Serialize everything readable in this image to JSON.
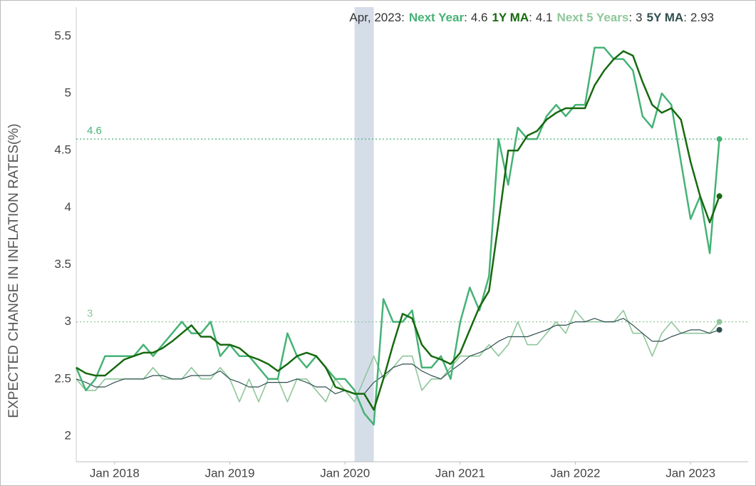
{
  "chart_data": {
    "type": "line",
    "header_date": "Apr, 2023:",
    "header_separator": ":",
    "y_label": "EXPECTED CHANGE IN INFLATION RATES(%)",
    "x": [
      "2017-09",
      "2017-10",
      "2017-11",
      "2017-12",
      "2018-01",
      "2018-02",
      "2018-03",
      "2018-04",
      "2018-05",
      "2018-06",
      "2018-07",
      "2018-08",
      "2018-09",
      "2018-10",
      "2018-11",
      "2018-12",
      "2019-01",
      "2019-02",
      "2019-03",
      "2019-04",
      "2019-05",
      "2019-06",
      "2019-07",
      "2019-08",
      "2019-09",
      "2019-10",
      "2019-11",
      "2019-12",
      "2020-01",
      "2020-02",
      "2020-03",
      "2020-04",
      "2020-05",
      "2020-06",
      "2020-07",
      "2020-08",
      "2020-09",
      "2020-10",
      "2020-11",
      "2020-12",
      "2021-01",
      "2021-02",
      "2021-03",
      "2021-04",
      "2021-05",
      "2021-06",
      "2021-07",
      "2021-08",
      "2021-09",
      "2021-10",
      "2021-11",
      "2021-12",
      "2022-01",
      "2022-02",
      "2022-03",
      "2022-04",
      "2022-05",
      "2022-06",
      "2022-07",
      "2022-08",
      "2022-09",
      "2022-10",
      "2022-11",
      "2022-12",
      "2023-01",
      "2023-02",
      "2023-03",
      "2023-04"
    ],
    "series": [
      {
        "name": "Next Year",
        "color": "#45b276",
        "width": 2.5,
        "values": [
          2.6,
          2.4,
          2.5,
          2.7,
          2.7,
          2.7,
          2.7,
          2.8,
          2.7,
          2.8,
          2.9,
          3.0,
          2.9,
          2.9,
          3.0,
          2.7,
          2.8,
          2.7,
          2.7,
          2.6,
          2.5,
          2.5,
          2.9,
          2.7,
          2.6,
          2.7,
          2.6,
          2.5,
          2.5,
          2.4,
          2.2,
          2.1,
          3.2,
          3.0,
          3.0,
          3.1,
          2.6,
          2.6,
          2.7,
          2.5,
          3.0,
          3.3,
          3.1,
          3.4,
          4.6,
          4.2,
          4.7,
          4.6,
          4.6,
          4.8,
          4.9,
          4.8,
          4.9,
          4.9,
          5.4,
          5.4,
          5.3,
          5.3,
          5.2,
          4.8,
          4.7,
          5.0,
          4.9,
          4.4,
          3.9,
          4.1,
          3.6,
          4.6
        ]
      },
      {
        "name": "1Y MA",
        "color": "#17690f",
        "width": 2.5,
        "values": [
          2.6,
          2.55,
          2.53,
          2.53,
          2.6,
          2.67,
          2.7,
          2.73,
          2.73,
          2.77,
          2.83,
          2.9,
          2.97,
          2.87,
          2.87,
          2.8,
          2.8,
          2.77,
          2.7,
          2.67,
          2.63,
          2.57,
          2.63,
          2.7,
          2.73,
          2.7,
          2.6,
          2.43,
          2.4,
          2.37,
          2.37,
          2.23,
          2.5,
          2.8,
          3.07,
          3.03,
          2.8,
          2.7,
          2.67,
          2.63,
          2.73,
          2.93,
          3.13,
          3.27,
          3.87,
          4.5,
          4.5,
          4.63,
          4.67,
          4.77,
          4.83,
          4.87,
          4.87,
          4.87,
          5.07,
          5.2,
          5.3,
          5.37,
          5.33,
          5.1,
          4.9,
          4.83,
          4.87,
          4.77,
          4.4,
          4.1,
          3.87,
          4.1
        ]
      },
      {
        "name": "Next 5 Years",
        "color": "#8fc79a",
        "width": 1.6,
        "values": [
          2.5,
          2.4,
          2.4,
          2.5,
          2.5,
          2.5,
          2.5,
          2.5,
          2.6,
          2.5,
          2.5,
          2.5,
          2.6,
          2.5,
          2.5,
          2.6,
          2.5,
          2.3,
          2.5,
          2.3,
          2.5,
          2.5,
          2.3,
          2.5,
          2.5,
          2.4,
          2.3,
          2.5,
          2.4,
          2.3,
          2.5,
          2.7,
          2.5,
          2.6,
          2.7,
          2.7,
          2.4,
          2.5,
          2.5,
          2.6,
          2.7,
          2.7,
          2.7,
          2.8,
          2.7,
          2.8,
          3.0,
          2.8,
          2.8,
          2.9,
          3.0,
          2.9,
          3.1,
          3.0,
          3.0,
          3.0,
          3.0,
          3.1,
          2.9,
          2.9,
          2.7,
          2.9,
          3.0,
          2.9,
          2.9,
          2.9,
          2.9,
          3.0
        ]
      },
      {
        "name": "5Y MA",
        "color": "#2f4f4f",
        "width": 1.2,
        "values": [
          2.5,
          2.47,
          2.43,
          2.43,
          2.47,
          2.5,
          2.5,
          2.5,
          2.53,
          2.53,
          2.5,
          2.5,
          2.53,
          2.53,
          2.53,
          2.57,
          2.5,
          2.47,
          2.43,
          2.43,
          2.47,
          2.47,
          2.47,
          2.5,
          2.47,
          2.43,
          2.43,
          2.37,
          2.4,
          2.37,
          2.37,
          2.47,
          2.53,
          2.6,
          2.63,
          2.63,
          2.57,
          2.53,
          2.5,
          2.57,
          2.63,
          2.7,
          2.73,
          2.77,
          2.83,
          2.87,
          2.87,
          2.87,
          2.9,
          2.93,
          2.97,
          2.97,
          3.0,
          3.0,
          3.03,
          3.0,
          3.0,
          3.03,
          2.97,
          2.9,
          2.83,
          2.83,
          2.87,
          2.9,
          2.93,
          2.93,
          2.9,
          2.93
        ]
      }
    ],
    "reference_lines": [
      {
        "value": 4.6,
        "color": "#45b276"
      },
      {
        "value": 3,
        "color": "#8fc79a"
      }
    ],
    "shaded_regions": [
      {
        "start": "2020-02",
        "end": "2020-04",
        "color": "#d5dde9"
      }
    ],
    "xlim": [
      "2017-09",
      "2023-07"
    ],
    "xticks": [
      {
        "value": "2018-01",
        "label": "Jan 2018"
      },
      {
        "value": "2019-01",
        "label": "Jan 2019"
      },
      {
        "value": "2020-01",
        "label": "Jan 2020"
      },
      {
        "value": "2021-01",
        "label": "Jan 2021"
      },
      {
        "value": "2022-01",
        "label": "Jan 2022"
      },
      {
        "value": "2023-01",
        "label": "Jan 2023"
      }
    ],
    "ylim": [
      1.775,
      5.755
    ],
    "yticks": [
      2,
      2.5,
      3,
      3.5,
      4,
      4.5,
      5,
      5.5
    ],
    "grid": false
  }
}
